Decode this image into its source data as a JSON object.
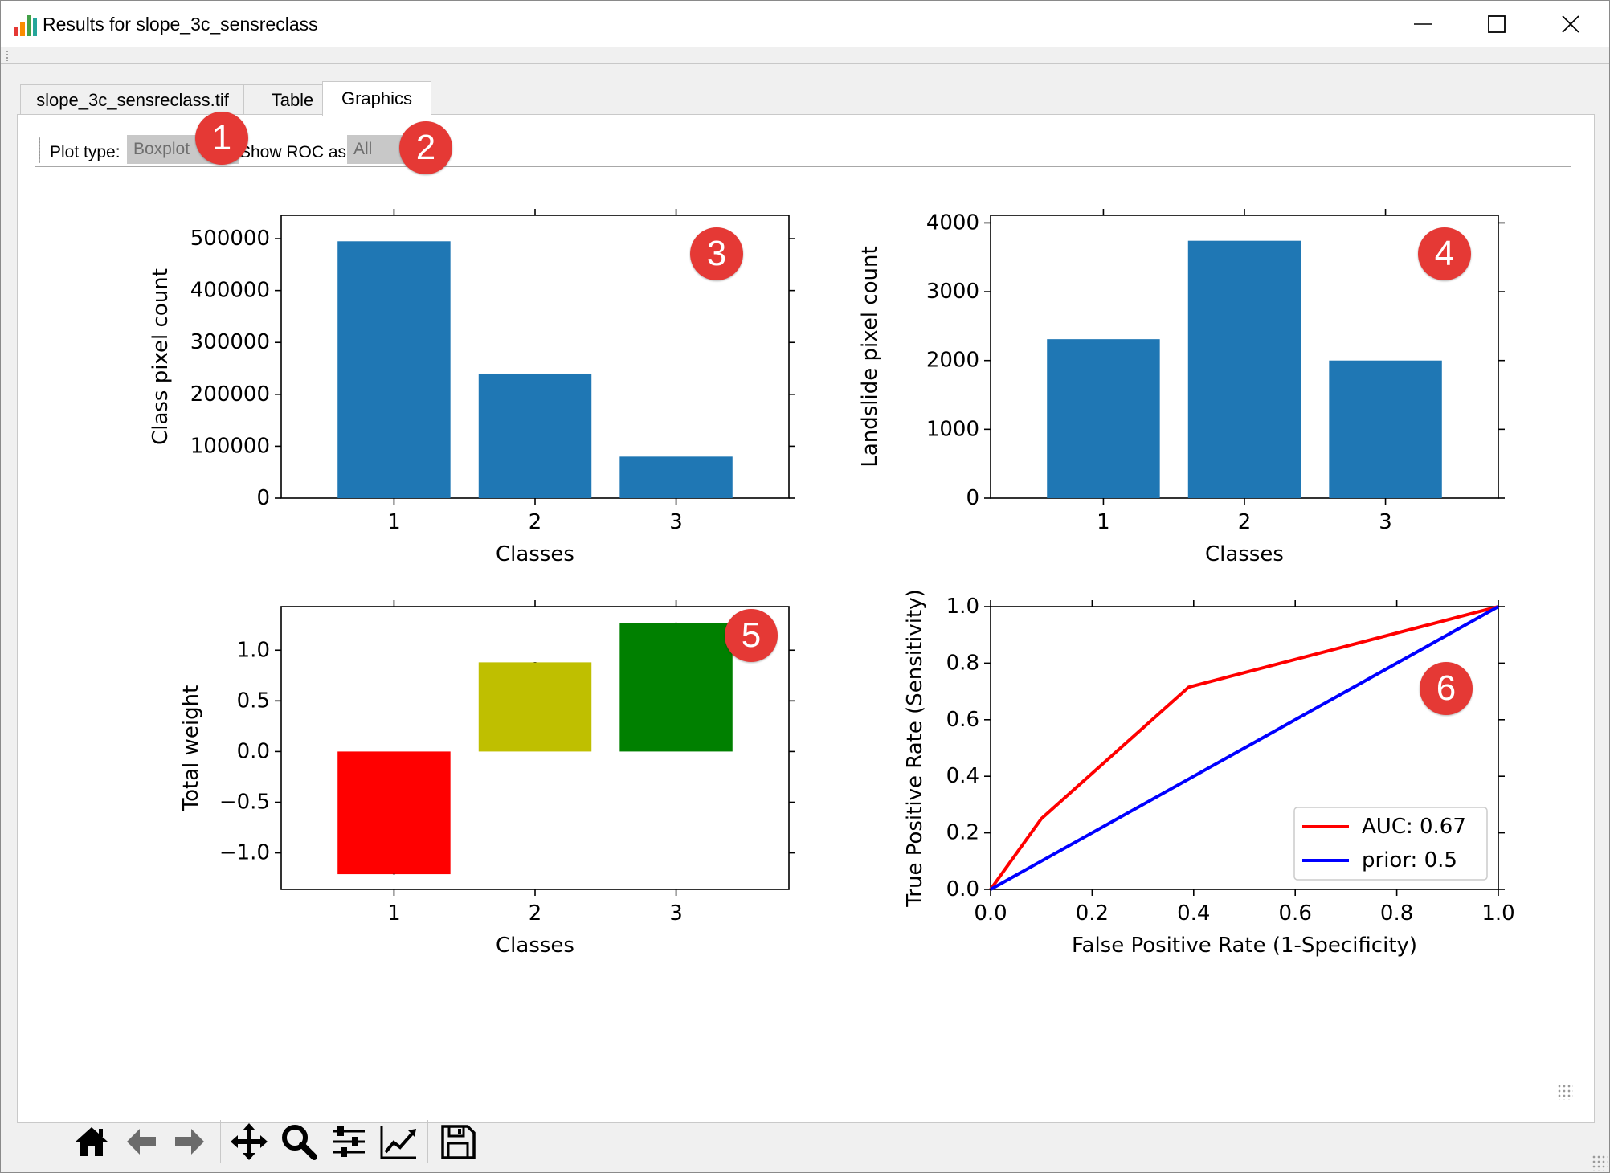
{
  "window": {
    "title": "Results for slope_3c_sensreclass",
    "controls": {
      "minimize": "minimize-icon",
      "maximize": "maximize-icon",
      "close": "close-icon"
    }
  },
  "tabs": [
    {
      "label": "slope_3c_sensreclass.tif",
      "active": false
    },
    {
      "label": "Table",
      "active": false
    },
    {
      "label": "Graphics",
      "active": true
    }
  ],
  "toolbar": {
    "plot_type_label": "Plot type:",
    "plot_type_value": "Boxplot",
    "roc_label": "Show ROC as:",
    "roc_value": "All"
  },
  "badges": [
    "1",
    "2",
    "3",
    "4",
    "5",
    "6"
  ],
  "navigation_toolbar": {
    "icons": [
      "home-icon",
      "back-icon",
      "forward-icon",
      "pan-icon",
      "zoom-icon",
      "configure-subplots-icon",
      "edit-axis-icon",
      "save-icon"
    ]
  },
  "chart_data": [
    {
      "type": "bar",
      "categories": [
        "1",
        "2",
        "3"
      ],
      "values": [
        495000,
        240000,
        80000
      ],
      "xlabel": "Classes",
      "ylabel": "Class pixel count",
      "ylim": [
        0,
        545000
      ],
      "yticks": [
        0,
        100000,
        200000,
        300000,
        400000,
        500000
      ],
      "ytick_labels": [
        "0",
        "100000",
        "200000",
        "300000",
        "400000",
        "500000"
      ],
      "color": "#1f77b4",
      "grid": false
    },
    {
      "type": "bar",
      "categories": [
        "1",
        "2",
        "3"
      ],
      "values": [
        2310,
        3740,
        2000
      ],
      "xlabel": "Classes",
      "ylabel": "Landslide pixel count",
      "ylim": [
        0,
        4110
      ],
      "yticks": [
        0,
        1000,
        2000,
        3000,
        4000
      ],
      "ytick_labels": [
        "0",
        "1000",
        "2000",
        "3000",
        "4000"
      ],
      "color": "#1f77b4",
      "grid": false
    },
    {
      "type": "bar",
      "categories": [
        "1",
        "2",
        "3"
      ],
      "values": [
        -1.21,
        0.88,
        1.27
      ],
      "errors": [
        0.01,
        0.01,
        0.01
      ],
      "colors": [
        "#ff0000",
        "#bfbf00",
        "#008000"
      ],
      "xlabel": "Classes",
      "ylabel": "Total weight",
      "ylim": [
        -1.36,
        1.43
      ],
      "yticks": [
        -1.0,
        -0.5,
        0.0,
        0.5,
        1.0
      ],
      "ytick_labels": [
        "−1.0",
        "−0.5",
        "0.0",
        "0.5",
        "1.0"
      ],
      "grid": false
    },
    {
      "type": "line",
      "xlabel": "False Positive Rate (1-Specificity)",
      "ylabel": "True Positive Rate (Sensitivity)",
      "xlim": [
        0,
        1
      ],
      "ylim": [
        0,
        1
      ],
      "xticks": [
        0.0,
        0.2,
        0.4,
        0.6,
        0.8,
        1.0
      ],
      "xtick_labels": [
        "0.0",
        "0.2",
        "0.4",
        "0.6",
        "0.8",
        "1.0"
      ],
      "yticks": [
        0.0,
        0.2,
        0.4,
        0.6,
        0.8,
        1.0
      ],
      "ytick_labels": [
        "0.0",
        "0.2",
        "0.4",
        "0.6",
        "0.8",
        "1.0"
      ],
      "legend_position": "lower-right",
      "grid": false,
      "series": [
        {
          "name": "AUC: 0.67",
          "color": "#ff0000",
          "x": [
            0.0,
            0.1,
            0.39,
            1.0
          ],
          "y": [
            0.0,
            0.25,
            0.715,
            1.0
          ]
        },
        {
          "name": "prior: 0.5",
          "color": "#0000ff",
          "x": [
            0.0,
            1.0
          ],
          "y": [
            0.0,
            1.0
          ]
        }
      ]
    }
  ]
}
